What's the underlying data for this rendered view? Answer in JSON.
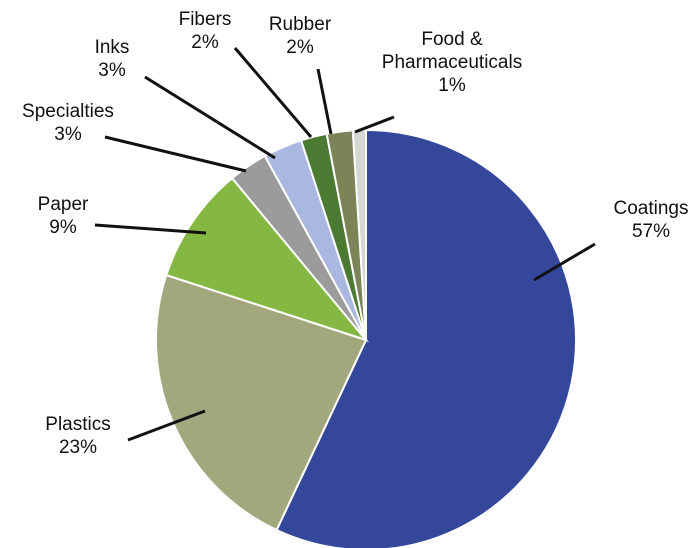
{
  "chart_data": {
    "type": "pie",
    "title": "",
    "start_angle_deg": 0,
    "direction": "clockwise",
    "slices": [
      {
        "label": "Coatings",
        "value": 57,
        "value_label": "57%",
        "color": "#34479b"
      },
      {
        "label": "Plastics",
        "value": 23,
        "value_label": "23%",
        "color": "#a3a77d"
      },
      {
        "label": "Paper",
        "value": 9,
        "value_label": "9%",
        "color": "#84b843"
      },
      {
        "label": "Specialties",
        "value": 3,
        "value_label": "3%",
        "color": "#9b9b9b"
      },
      {
        "label": "Inks",
        "value": 3,
        "value_label": "3%",
        "color": "#aab8e1"
      },
      {
        "label": "Fibers",
        "value": 2,
        "value_label": "2%",
        "color": "#4b7a33"
      },
      {
        "label": "Rubber",
        "value": 2,
        "value_label": "2%",
        "color": "#7b8456"
      },
      {
        "label": "Food & Pharmaceuticals",
        "label_lines": [
          "Food &",
          "Pharmaceuticals"
        ],
        "value": 1,
        "value_label": "1%",
        "color": "#d4d6d2"
      }
    ]
  }
}
